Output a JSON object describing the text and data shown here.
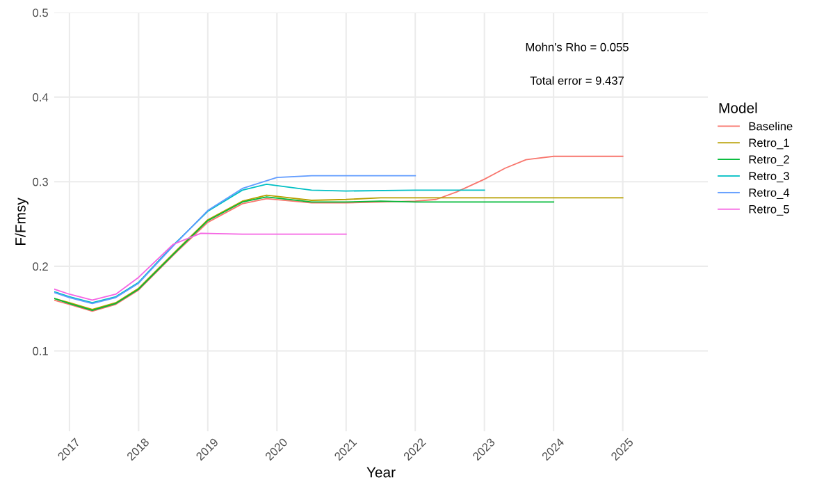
{
  "chart_data": {
    "type": "line",
    "xlabel": "Year",
    "ylabel": "F/Fmsy",
    "legend_title": "Model",
    "legend": "right",
    "grid": true,
    "marker": "none",
    "line_style": "solid",
    "xlim": [
      2016.78,
      2026.23
    ],
    "xticks": [
      2017,
      2018,
      2019,
      2020,
      2021,
      2022,
      2023,
      2024,
      2025
    ],
    "ylim": [
      0.005,
      0.5
    ],
    "yticks": [
      0.1,
      0.2,
      0.3,
      0.4,
      0.5
    ],
    "annotations": [
      "Mohn's Rho = 0.055",
      "Total error = 9.437"
    ],
    "series": [
      {
        "name": "Baseline",
        "color": "#f8766d",
        "x": [
          2016.78,
          2017,
          2017.33,
          2017.67,
          2018,
          2018.5,
          2019,
          2019.5,
          2019.85,
          2020.5,
          2021,
          2021.5,
          2022,
          2022.3,
          2022.6,
          2023,
          2023.3,
          2023.6,
          2024,
          2025
        ],
        "values": [
          0.16,
          0.155,
          0.147,
          0.155,
          0.172,
          0.213,
          0.252,
          0.274,
          0.28,
          0.275,
          0.275,
          0.276,
          0.277,
          0.279,
          0.288,
          0.303,
          0.316,
          0.326,
          0.33,
          0.33
        ]
      },
      {
        "name": "Retro_1",
        "color": "#b79f00",
        "x": [
          2016.78,
          2017,
          2017.33,
          2017.67,
          2018,
          2018.5,
          2019,
          2019.5,
          2019.85,
          2020.5,
          2021,
          2021.5,
          2022,
          2025
        ],
        "values": [
          0.162,
          0.157,
          0.149,
          0.157,
          0.174,
          0.215,
          0.255,
          0.277,
          0.284,
          0.278,
          0.279,
          0.281,
          0.281,
          0.281
        ]
      },
      {
        "name": "Retro_2",
        "color": "#00ba38",
        "x": [
          2016.78,
          2017,
          2017.33,
          2017.67,
          2018,
          2018.5,
          2019,
          2019.5,
          2019.85,
          2020.5,
          2021,
          2021.5,
          2022,
          2024
        ],
        "values": [
          0.162,
          0.156,
          0.148,
          0.156,
          0.173,
          0.214,
          0.254,
          0.276,
          0.282,
          0.276,
          0.276,
          0.277,
          0.276,
          0.276
        ]
      },
      {
        "name": "Retro_3",
        "color": "#00bfc4",
        "x": [
          2016.78,
          2017,
          2017.33,
          2017.67,
          2018,
          2018.5,
          2019,
          2019.5,
          2019.85,
          2020.5,
          2021,
          2022,
          2023
        ],
        "values": [
          0.17,
          0.164,
          0.157,
          0.164,
          0.181,
          0.225,
          0.265,
          0.29,
          0.297,
          0.29,
          0.289,
          0.29,
          0.29
        ]
      },
      {
        "name": "Retro_4",
        "color": "#619cff",
        "x": [
          2016.78,
          2017,
          2017.33,
          2017.67,
          2018,
          2018.5,
          2019,
          2019.5,
          2020,
          2020.5,
          2021,
          2022
        ],
        "values": [
          0.169,
          0.163,
          0.156,
          0.163,
          0.18,
          0.224,
          0.266,
          0.292,
          0.305,
          0.307,
          0.307,
          0.307
        ]
      },
      {
        "name": "Retro_5",
        "color": "#f564e3",
        "x": [
          2016.78,
          2017,
          2017.33,
          2017.67,
          2018,
          2018.5,
          2018.9,
          2019.5,
          2020,
          2021
        ],
        "values": [
          0.173,
          0.167,
          0.16,
          0.167,
          0.187,
          0.226,
          0.239,
          0.238,
          0.238,
          0.238
        ]
      }
    ]
  }
}
